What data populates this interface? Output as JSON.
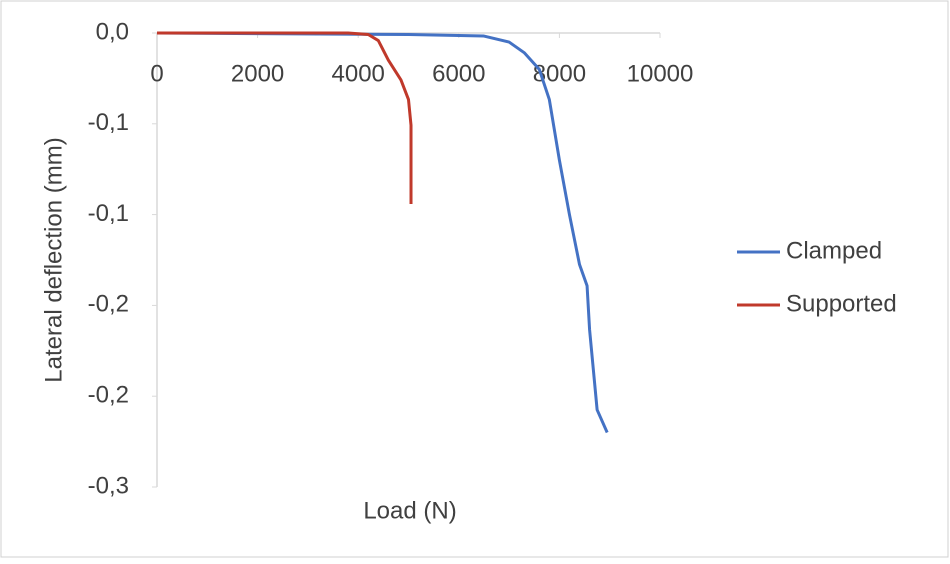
{
  "chart_data": {
    "type": "line",
    "x_label": "Load (N)",
    "y_label": "Lateral deflection (mm)",
    "xlim": [
      0,
      10000
    ],
    "xticks": [
      0,
      2000,
      4000,
      6000,
      8000,
      10000
    ],
    "ylim": [
      -0.3,
      0
    ],
    "yticks": [
      {
        "value": 0,
        "label": "0,0"
      },
      {
        "value": -0.06,
        "label": "-0,1"
      },
      {
        "value": -0.12,
        "label": "-0,1"
      },
      {
        "value": -0.18,
        "label": "-0,2"
      },
      {
        "value": -0.24,
        "label": "-0,2"
      },
      {
        "value": -0.3,
        "label": "-0,3"
      }
    ],
    "grid": false,
    "legend": "right",
    "series": [
      {
        "name": "Clamped",
        "color": "#4472c4",
        "x": [
          0,
          5000,
          6500,
          7000,
          7300,
          7600,
          7800,
          8000,
          8200,
          8400,
          8550,
          8600,
          8750,
          8950
        ],
        "values": [
          0,
          -0.001,
          -0.002,
          -0.006,
          -0.013,
          -0.024,
          -0.044,
          -0.084,
          -0.12,
          -0.153,
          -0.167,
          -0.196,
          -0.249,
          -0.264
        ]
      },
      {
        "name": "Supported",
        "color": "#c0392b",
        "x": [
          0,
          3800,
          4200,
          4400,
          4600,
          4850,
          5000,
          5050,
          5050
        ],
        "values": [
          0,
          0,
          -0.001,
          -0.005,
          -0.018,
          -0.031,
          -0.044,
          -0.061,
          -0.113
        ]
      }
    ]
  }
}
